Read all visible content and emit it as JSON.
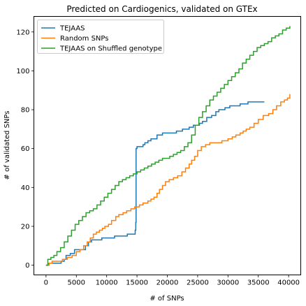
{
  "chart_data": {
    "type": "line",
    "title": "Predicted on Cardiogenics, validated on GTEx",
    "xlabel": "# of SNPs",
    "ylabel": "# of validated SNPs",
    "xlim": [
      -2000,
      42000
    ],
    "ylim": [
      -5,
      128
    ],
    "xticks": [
      0,
      5000,
      10000,
      15000,
      20000,
      25000,
      30000,
      35000,
      40000
    ],
    "yticks": [
      0,
      20,
      40,
      60,
      80,
      100,
      120
    ],
    "grid": false,
    "legend_position": "top-left",
    "series": [
      {
        "name": "TEJAAS",
        "color": "#1f77b4",
        "step": true,
        "x": [
          0,
          400,
          1500,
          2000,
          2500,
          3000,
          3300,
          4000,
          4700,
          6500,
          7000,
          7500,
          8500,
          9200,
          10000,
          11300,
          12000,
          13400,
          14700,
          14800,
          14850,
          15000,
          15500,
          16000,
          16300,
          16800,
          17300,
          17700,
          18300,
          19200,
          20000,
          21500,
          22500,
          23600,
          24300,
          24800,
          25300,
          25800,
          26500,
          27300,
          28000,
          28500,
          29500,
          30300,
          31000,
          32000,
          32700,
          33300,
          36000
        ],
        "y": [
          0,
          1,
          1,
          1,
          2,
          3,
          5,
          6,
          8,
          10,
          12,
          13,
          13,
          14,
          14,
          15,
          15,
          16,
          18,
          22,
          60,
          61,
          61,
          62,
          63,
          64,
          65,
          65,
          67,
          68,
          68,
          69,
          70,
          71,
          72,
          72,
          73,
          74,
          76,
          77,
          79,
          80,
          81,
          82,
          82,
          83,
          83,
          84,
          84
        ]
      },
      {
        "name": "Random SNPs",
        "color": "#ff7f0e",
        "step": true,
        "x": [
          0,
          500,
          1000,
          2000,
          2700,
          3500,
          4300,
          5000,
          5600,
          6200,
          6800,
          7300,
          7800,
          8300,
          8800,
          9300,
          9700,
          10300,
          10800,
          11500,
          12000,
          12700,
          13300,
          14000,
          14600,
          15400,
          16000,
          16800,
          17300,
          17800,
          18300,
          18700,
          19200,
          19700,
          20300,
          21000,
          21700,
          22400,
          23000,
          23600,
          24000,
          24500,
          25000,
          25600,
          26300,
          27000,
          28000,
          29000,
          30000,
          30700,
          31300,
          32000,
          32500,
          33000,
          33600,
          34300,
          35000,
          35800,
          36700,
          37400,
          38000,
          38700,
          39300,
          39800,
          40200
        ],
        "y": [
          0,
          1,
          2,
          2,
          3,
          4,
          5,
          7,
          8,
          10,
          12,
          14,
          16,
          17,
          18,
          19,
          20,
          21,
          23,
          25,
          26,
          27,
          28,
          29,
          30,
          31,
          32,
          33,
          34,
          35,
          37,
          39,
          41,
          43,
          44,
          45,
          46,
          48,
          50,
          52,
          54,
          56,
          59,
          61,
          62,
          63,
          63,
          64,
          65,
          66,
          67,
          68,
          69,
          70,
          71,
          73,
          75,
          77,
          78,
          80,
          82,
          84,
          85,
          86,
          88
        ]
      },
      {
        "name": "TEJAAS on Shuffled genotype",
        "color": "#2ca02c",
        "step": true,
        "x": [
          0,
          300,
          800,
          1300,
          1800,
          2400,
          3000,
          3600,
          4200,
          4800,
          5400,
          6000,
          6600,
          7200,
          7800,
          8400,
          9000,
          9600,
          10200,
          10800,
          11400,
          12000,
          12600,
          13200,
          13800,
          14400,
          15000,
          15600,
          16200,
          16800,
          17400,
          18000,
          18600,
          19200,
          19800,
          20400,
          21000,
          21600,
          22200,
          22800,
          23400,
          24000,
          24600,
          25200,
          25800,
          26400,
          27000,
          27600,
          28200,
          28800,
          29400,
          30000,
          30600,
          31200,
          31800,
          32400,
          33000,
          33600,
          34200,
          34800,
          35400,
          36000,
          36600,
          37200,
          37800,
          38400,
          39000,
          39600,
          40200
        ],
        "y": [
          0,
          3,
          4,
          5,
          7,
          9,
          12,
          15,
          18,
          21,
          23,
          25,
          27,
          28,
          29,
          31,
          33,
          35,
          37,
          39,
          41,
          43,
          44,
          45,
          46,
          47,
          48,
          49,
          50,
          51,
          52,
          53,
          54,
          55,
          55,
          56,
          57,
          58,
          59,
          61,
          63,
          67,
          72,
          76,
          79,
          82,
          85,
          87,
          89,
          91,
          93,
          95,
          97,
          99,
          101,
          104,
          106,
          108,
          110,
          112,
          113,
          114,
          115,
          117,
          118,
          119,
          121,
          122,
          123
        ]
      }
    ]
  }
}
